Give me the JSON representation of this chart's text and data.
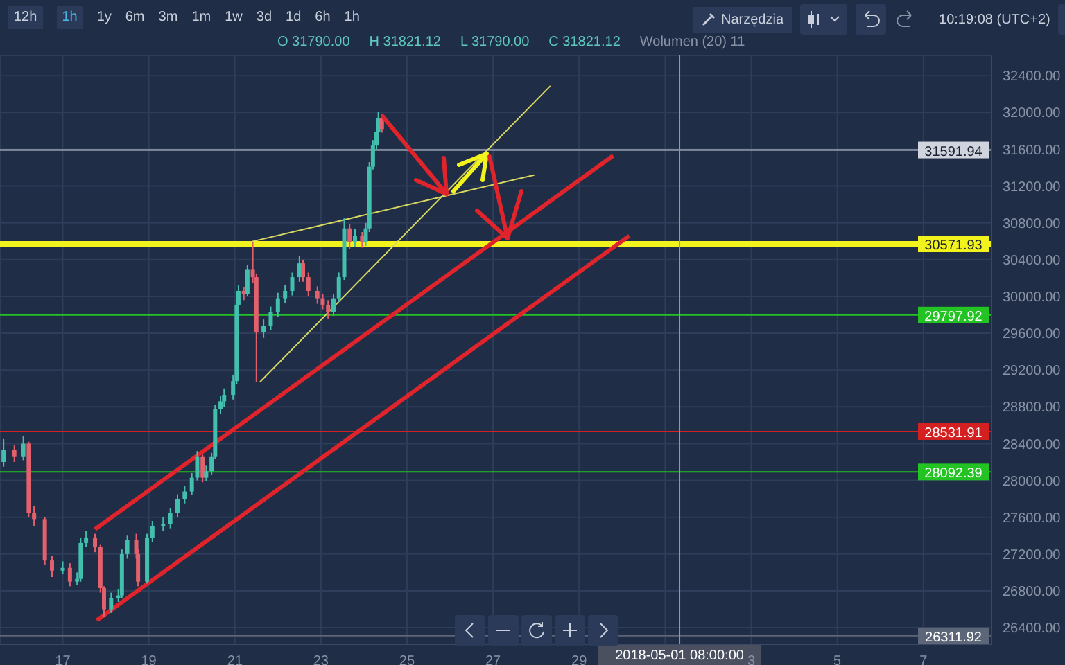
{
  "chart_data": {
    "type": "candlestick",
    "annotations": [
      "12h",
      "1h",
      "1y",
      "6m",
      "3m",
      "1m",
      "1w",
      "3d",
      "1d",
      "6h",
      "1h",
      "Narzędzia",
      "10:19:08 (UTC+2)",
      "O 31790.00",
      "H 31821.12",
      "L 31790.00",
      "C 31821.12",
      "Wolumen (20) 11"
    ],
    "xlim": [
      "2018-04-15T13:00",
      "2018-05-08T14:00"
    ],
    "xticks": [
      {
        "value": "2018-04-17",
        "label": "17"
      },
      {
        "value": "2018-04-19",
        "label": "19"
      },
      {
        "value": "2018-04-21",
        "label": "21"
      },
      {
        "value": "2018-04-23",
        "label": "23"
      },
      {
        "value": "2018-04-25",
        "label": "25"
      },
      {
        "value": "2018-04-27",
        "label": "27"
      },
      {
        "value": "2018-04-29",
        "label": "29"
      },
      {
        "value": "2018-05-01",
        "label": null
      },
      {
        "value": "2018-05-03",
        "label": "3"
      },
      {
        "value": "2018-05-05",
        "label": "5"
      },
      {
        "value": "2018-05-07",
        "label": "7"
      }
    ],
    "ylim": [
      26220,
      32620
    ],
    "yticks": [
      {
        "value": 26400,
        "label": "26400.00"
      },
      {
        "value": 26800,
        "label": "26800.00"
      },
      {
        "value": 27200,
        "label": "27200.00"
      },
      {
        "value": 27600,
        "label": "27600.00"
      },
      {
        "value": 28000,
        "label": "28000.00"
      },
      {
        "value": 28400,
        "label": "28400.00"
      },
      {
        "value": 28800,
        "label": "28800.00"
      },
      {
        "value": 29200,
        "label": "29200.00"
      },
      {
        "value": 29600,
        "label": "29600.00"
      },
      {
        "value": 30000,
        "label": "30000.00"
      },
      {
        "value": 30400,
        "label": "30400.00"
      },
      {
        "value": 30800,
        "label": "30800.00"
      },
      {
        "value": 31200,
        "label": "31200.00"
      },
      {
        "value": 31600,
        "label": "31600.00"
      },
      {
        "value": 32000,
        "label": "32000.00"
      },
      {
        "value": 32400,
        "label": "32400.00"
      }
    ],
    "grid": true,
    "ref_lines": [
      {
        "axis": "y",
        "value": 31591.94,
        "label": "31591.94",
        "color": "#d0d4dc"
      },
      {
        "axis": "y",
        "value": 30571.93,
        "label": "30571.93",
        "color": "#f2f21c"
      },
      {
        "axis": "y",
        "value": 29797.92,
        "label": "29797.92",
        "color": "#22c322"
      },
      {
        "axis": "y",
        "value": 28531.91,
        "label": "28531.91",
        "color": "#d42020"
      },
      {
        "axis": "y",
        "value": 28092.39,
        "label": "28092.39",
        "color": "#22c322"
      },
      {
        "axis": "y",
        "value": 26311.92,
        "label": "26311.92",
        "color": "#5d6678"
      },
      {
        "axis": "x",
        "value": "2018-05-01T08:00",
        "label": "2018-05-01 08:00:00",
        "color": "#8f97a8"
      }
    ],
    "series": [
      {
        "type": "candlestick",
        "x": [
          "2018-04-15T15:00",
          "2018-04-15T21:00",
          "2018-04-16T02:00",
          "2018-04-16T05:00",
          "2018-04-16T08:00",
          "2018-04-16T14:00",
          "2018-04-16T18:00",
          "2018-04-17T00:00",
          "2018-04-17T04:00",
          "2018-04-17T08:00",
          "2018-04-17T10:00",
          "2018-04-17T13:00",
          "2018-04-17T18:00",
          "2018-04-17T21:00",
          "2018-04-17T23:00",
          "2018-04-18T03:00",
          "2018-04-18T07:00",
          "2018-04-18T09:00",
          "2018-04-18T12:00",
          "2018-04-18T17:00",
          "2018-04-18T18:00",
          "2018-04-18T23:00",
          "2018-04-19T02:00",
          "2018-04-19T08:00",
          "2018-04-19T12:00",
          "2018-04-19T16:00",
          "2018-04-19T20:00",
          "2018-04-20T00:00",
          "2018-04-20T03:00",
          "2018-04-20T06:00",
          "2018-04-20T08:00",
          "2018-04-20T11:00",
          "2018-04-20T13:00",
          "2018-04-20T16:00",
          "2018-04-20T18:00",
          "2018-04-20T23:00",
          "2018-04-21T01:00",
          "2018-04-21T02:00",
          "2018-04-21T05:00",
          "2018-04-21T07:00",
          "2018-04-21T10:00",
          "2018-04-21T12:00",
          "2018-04-21T16:00",
          "2018-04-21T20:00",
          "2018-04-22T00:00",
          "2018-04-22T04:00",
          "2018-04-22T08:00",
          "2018-04-22T12:00",
          "2018-04-22T14:00",
          "2018-04-22T17:00",
          "2018-04-22T22:00",
          "2018-04-23T01:00",
          "2018-04-23T04:00",
          "2018-04-23T07:00",
          "2018-04-23T10:00",
          "2018-04-23T13:00",
          "2018-04-23T16:00",
          "2018-04-23T19:00",
          "2018-04-23T23:00",
          "2018-04-24T01:00",
          "2018-04-24T03:00",
          "2018-04-24T05:00",
          "2018-04-24T07:00",
          "2018-04-24T08:00",
          "2018-04-24T10:00"
        ],
        "ohlc": [
          [
            28200,
            28450,
            28150,
            28330
          ],
          [
            28330,
            28380,
            28200,
            28255
          ],
          [
            28255,
            28480,
            28220,
            28400
          ],
          [
            28400,
            28420,
            27600,
            27650
          ],
          [
            27650,
            27720,
            27500,
            27580
          ],
          [
            27580,
            27600,
            27080,
            27130
          ],
          [
            27130,
            27180,
            26950,
            27020
          ],
          [
            27020,
            27120,
            26980,
            27050
          ],
          [
            27050,
            27100,
            26850,
            26900
          ],
          [
            26900,
            27000,
            26860,
            26930
          ],
          [
            26930,
            27380,
            26900,
            27320
          ],
          [
            27320,
            27450,
            27280,
            27380
          ],
          [
            27380,
            27420,
            27220,
            27280
          ],
          [
            27280,
            27300,
            26780,
            26830
          ],
          [
            26830,
            26850,
            26520,
            26600
          ],
          [
            26600,
            26780,
            26560,
            26720
          ],
          [
            26720,
            26820,
            26680,
            26750
          ],
          [
            26750,
            27250,
            26720,
            27200
          ],
          [
            27200,
            27400,
            27150,
            27350
          ],
          [
            27350,
            27420,
            27150,
            27200
          ],
          [
            27200,
            27250,
            26850,
            26900
          ],
          [
            26900,
            27420,
            26880,
            27380
          ],
          [
            27380,
            27560,
            27330,
            27500
          ],
          [
            27500,
            27600,
            27450,
            27530
          ],
          [
            27530,
            27700,
            27480,
            27650
          ],
          [
            27650,
            27850,
            27600,
            27800
          ],
          [
            27800,
            27940,
            27750,
            27880
          ],
          [
            27880,
            28080,
            27840,
            28030
          ],
          [
            28030,
            28320,
            28000,
            28255
          ],
          [
            28255,
            28280,
            27980,
            28030
          ],
          [
            28030,
            28160,
            27990,
            28100
          ],
          [
            28100,
            28300,
            28060,
            28255
          ],
          [
            28255,
            28820,
            28230,
            28780
          ],
          [
            28780,
            28920,
            28720,
            28860
          ],
          [
            28860,
            29000,
            28800,
            28930
          ],
          [
            28930,
            29150,
            28880,
            29080
          ],
          [
            29080,
            29950,
            29050,
            29910
          ],
          [
            29910,
            30120,
            29850,
            30060
          ],
          [
            30060,
            30100,
            29960,
            30030
          ],
          [
            30030,
            30340,
            30000,
            30290
          ],
          [
            30290,
            30590,
            30150,
            30210
          ],
          [
            30210,
            30250,
            29070,
            29610
          ],
          [
            29610,
            29750,
            29550,
            29680
          ],
          [
            29680,
            29890,
            29630,
            29830
          ],
          [
            29830,
            30040,
            29780,
            29980
          ],
          [
            29980,
            30120,
            29930,
            30060
          ],
          [
            30060,
            30260,
            30010,
            30210
          ],
          [
            30210,
            30440,
            30160,
            30360
          ],
          [
            30360,
            30400,
            30160,
            30210
          ],
          [
            30210,
            30260,
            30000,
            30060
          ],
          [
            30060,
            30110,
            29920,
            29980
          ],
          [
            29980,
            30030,
            29860,
            29910
          ],
          [
            29910,
            29960,
            29760,
            29830
          ],
          [
            29830,
            30030,
            29790,
            29980
          ],
          [
            29980,
            30260,
            29940,
            30210
          ],
          [
            30210,
            30850,
            30180,
            30740
          ],
          [
            30740,
            30790,
            30520,
            30590
          ],
          [
            30590,
            30730,
            30540,
            30660
          ],
          [
            30660,
            30700,
            30530,
            30590
          ],
          [
            30590,
            30800,
            30550,
            30740
          ],
          [
            30740,
            31460,
            30700,
            31410
          ],
          [
            31410,
            31700,
            31380,
            31640
          ],
          [
            31640,
            31850,
            31600,
            31790
          ],
          [
            31790,
            32010,
            31750,
            31940
          ],
          [
            31940,
            31980,
            31780,
            31820
          ]
        ]
      },
      {
        "type": "line",
        "color": "#e0242b",
        "x": [
          "2018-04-17T18:00",
          "2018-04-29T19:00"
        ],
        "values": [
          27470,
          31530
        ]
      },
      {
        "type": "line",
        "color": "#e0242b",
        "x": [
          "2018-04-17T19:00",
          "2018-04-30T04:00"
        ],
        "values": [
          26480,
          30660
        ]
      },
      {
        "type": "line",
        "color": "#d8d860",
        "x": [
          "2018-04-21T14:00",
          "2018-04-28T08:00"
        ],
        "values": [
          29070,
          32290
        ]
      },
      {
        "type": "line",
        "color": "#d8d860",
        "x": [
          "2018-04-21T08:00",
          "2018-04-27T23:00"
        ],
        "values": [
          30590,
          31320
        ]
      }
    ]
  }
}
